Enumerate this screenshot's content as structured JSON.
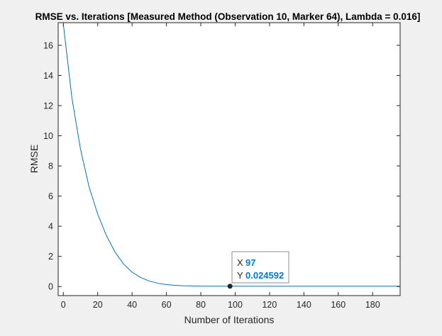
{
  "chart_data": {
    "type": "line",
    "title": "RMSE vs. Iterations [Measured Method (Observation 10, Marker 64), Lambda = 0.016]",
    "xlabel": "Number of Iterations",
    "ylabel": "RMSE",
    "xlim": [
      -3,
      196
    ],
    "ylim": [
      -0.6,
      17.5
    ],
    "xticks": [
      0,
      20,
      40,
      60,
      80,
      100,
      120,
      140,
      160,
      180
    ],
    "yticks": [
      0,
      2,
      4,
      6,
      8,
      10,
      12,
      14,
      16
    ],
    "grid": false,
    "series": [
      {
        "color": "#0072bd",
        "x": [
          0,
          5,
          10,
          15,
          20,
          25,
          30,
          35,
          40,
          45,
          50,
          55,
          60,
          65,
          70,
          80,
          97,
          120,
          150,
          196
        ],
        "y": [
          17.4,
          12.5,
          9.1,
          6.6,
          4.8,
          3.4,
          2.3,
          1.5,
          0.95,
          0.6,
          0.36,
          0.22,
          0.13,
          0.08,
          0.05,
          0.03,
          0.024592,
          0.02,
          0.02,
          0.02
        ]
      }
    ],
    "datatip": {
      "x_label": "X",
      "y_label": "Y",
      "x_value": "97",
      "y_value": "0.024592",
      "x": 97,
      "y": 0.024592
    }
  },
  "colors": {
    "line": "#0072bd",
    "datatip_value": "#0078d7",
    "axes": "#262626",
    "figure_background": "#f0f0f0",
    "axes_background": "#ffffff"
  }
}
